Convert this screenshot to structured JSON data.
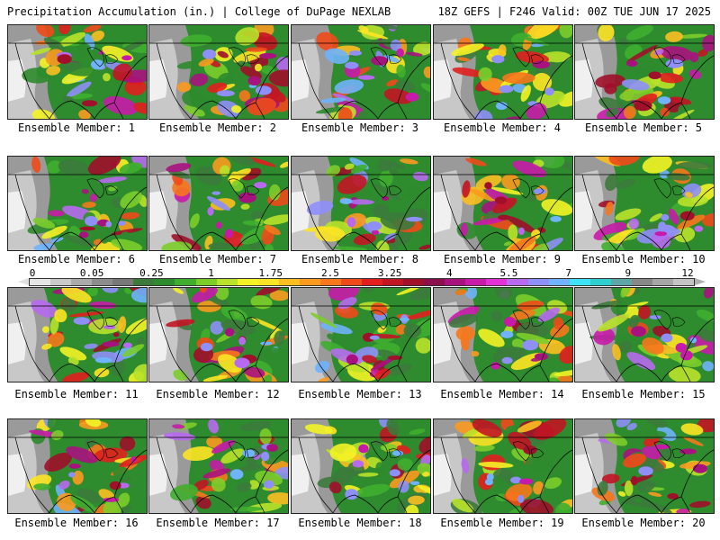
{
  "header": {
    "left": "Precipitation Accumulation (in.) | College of DuPage NEXLAB",
    "right": "18Z GEFS | F246 Valid: 00Z TUE JUN 17 2025"
  },
  "colorbar": {
    "ticks": [
      "0",
      "0.05",
      "0.25",
      "1",
      "1.75",
      "2.5",
      "3.25",
      "4",
      "5.5",
      "7",
      "9",
      "12"
    ],
    "colors": [
      "#e6e6e6",
      "#c8c8c8",
      "#aaaaaa",
      "#8c8c8c",
      "#787878",
      "#3c7a3c",
      "#2e8b2e",
      "#3fae2f",
      "#7ccd2a",
      "#b9e22a",
      "#f3f326",
      "#fde424",
      "#fcbf22",
      "#fb9a1f",
      "#f7771c",
      "#ef4a1a",
      "#e21e1e",
      "#c21523",
      "#a0102a",
      "#8a0f4a",
      "#a8127f",
      "#c81aa8",
      "#e431d6",
      "#b76af0",
      "#8e8ff8",
      "#6fb3fb",
      "#3ee4f6",
      "#2fcfcf",
      "#5fa7a7",
      "#888888",
      "#a6a6a6",
      "#c4c4c4"
    ]
  },
  "members": [
    {
      "label": "Ensemble Member: 1"
    },
    {
      "label": "Ensemble Member: 2"
    },
    {
      "label": "Ensemble Member: 3"
    },
    {
      "label": "Ensemble Member: 4"
    },
    {
      "label": "Ensemble Member: 5"
    },
    {
      "label": "Ensemble Member: 6"
    },
    {
      "label": "Ensemble Member: 7"
    },
    {
      "label": "Ensemble Member: 8"
    },
    {
      "label": "Ensemble Member: 9"
    },
    {
      "label": "Ensemble Member: 10"
    },
    {
      "label": "Ensemble Member: 11"
    },
    {
      "label": "Ensemble Member: 12"
    },
    {
      "label": "Ensemble Member: 13"
    },
    {
      "label": "Ensemble Member: 14"
    },
    {
      "label": "Ensemble Member: 15"
    },
    {
      "label": "Ensemble Member: 16"
    },
    {
      "label": "Ensemble Member: 17"
    },
    {
      "label": "Ensemble Member: 18"
    },
    {
      "label": "Ensemble Member: 19"
    },
    {
      "label": "Ensemble Member: 20"
    }
  ]
}
